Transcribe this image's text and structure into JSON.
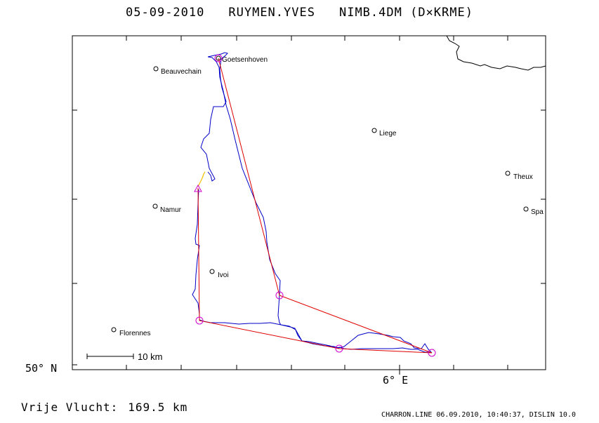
{
  "header": {
    "date": "05-09-2010",
    "pilot": "RUYMEN.YVES",
    "glider": "NIMB.4DM (D×KRME)"
  },
  "axes": {
    "lat_label": "50° N",
    "lon_label": "6° E"
  },
  "towns": [
    {
      "name": "Goetsenhoven"
    },
    {
      "name": "Beauvechain"
    },
    {
      "name": "Liege"
    },
    {
      "name": "Theux"
    },
    {
      "name": "Namur"
    },
    {
      "name": "Spa"
    },
    {
      "name": "Ivoi"
    },
    {
      "name": "Florennes"
    }
  ],
  "scale_bar": {
    "label": "10 km"
  },
  "flight": {
    "distance_label": "Vrije Vlucht:",
    "distance_value": "169.5 km"
  },
  "footer": {
    "stamp": "CHARRON.LINE 06.09.2010, 10:40:37, DISLIN 10.0"
  },
  "colors": {
    "task_line": "#e00000",
    "track": "#0000c8",
    "start_marker": "#d000d0",
    "turnpoint": "#d000d0",
    "takeoff_segment": "#f0c000",
    "frame": "#000000"
  }
}
